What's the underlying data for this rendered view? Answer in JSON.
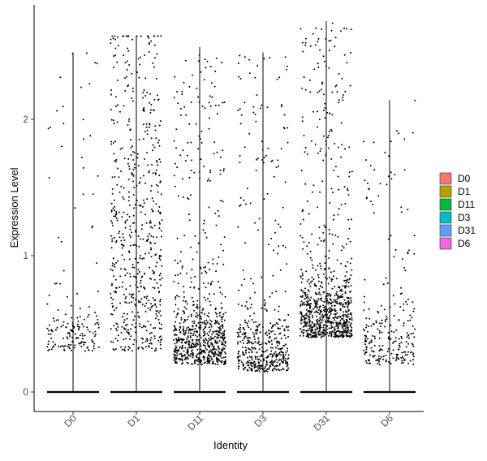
{
  "chart_data": {
    "type": "violin-jitter",
    "xlabel": "Identity",
    "ylabel": "Expression Level",
    "ylim": [
      -0.08,
      2.8
    ],
    "yticks": [
      0,
      1,
      2
    ],
    "categories": [
      "D0",
      "D1",
      "D11",
      "D3",
      "D31",
      "D6"
    ],
    "legend": {
      "position": "right",
      "entries": [
        {
          "label": "D0",
          "color": "#F8766D"
        },
        {
          "label": "D1",
          "color": "#B79F00"
        },
        {
          "label": "D11",
          "color": "#00BA38"
        },
        {
          "label": "D3",
          "color": "#00BFC4"
        },
        {
          "label": "D31",
          "color": "#619CFF"
        },
        {
          "label": "D6",
          "color": "#F564E3"
        }
      ]
    },
    "groups": [
      {
        "name": "D0",
        "max": 2.49,
        "zero_fraction": 0.85,
        "nonzero_points": 170,
        "dense_range": [
          0.3,
          0.6
        ]
      },
      {
        "name": "D1",
        "max": 2.61,
        "zero_fraction": 0.55,
        "nonzero_points": 600,
        "dense_range": [
          0.3,
          2.2
        ]
      },
      {
        "name": "D11",
        "max": 2.53,
        "zero_fraction": 0.5,
        "nonzero_points": 750,
        "dense_range": [
          0.2,
          0.6
        ]
      },
      {
        "name": "D3",
        "max": 2.49,
        "zero_fraction": 0.6,
        "nonzero_points": 500,
        "dense_range": [
          0.15,
          0.5
        ]
      },
      {
        "name": "D31",
        "max": 2.72,
        "zero_fraction": 0.45,
        "nonzero_points": 850,
        "dense_range": [
          0.4,
          0.8
        ]
      },
      {
        "name": "D6",
        "max": 2.14,
        "zero_fraction": 0.7,
        "nonzero_points": 250,
        "dense_range": [
          0.2,
          0.6
        ]
      }
    ]
  }
}
